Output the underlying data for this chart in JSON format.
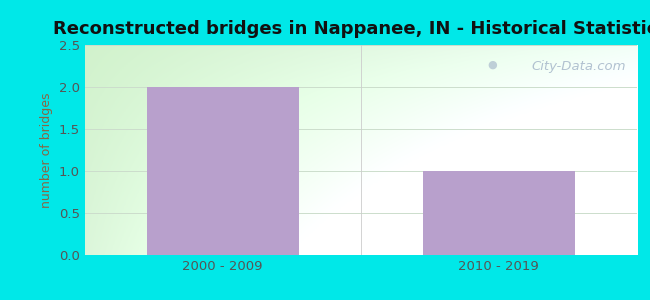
{
  "title": "Reconstructed bridges in Nappanee, IN - Historical Statistics",
  "categories": [
    "2000 - 2009",
    "2010 - 2019"
  ],
  "values": [
    2,
    1
  ],
  "bar_color": "#b8a0cc",
  "bar_width": 0.55,
  "ylim": [
    0,
    2.5
  ],
  "yticks": [
    0,
    0.5,
    1,
    1.5,
    2,
    2.5
  ],
  "ylabel": "number of bridges",
  "ylabel_color": "#886644",
  "title_fontsize": 13,
  "tick_label_color": "#555555",
  "outer_bg_color": "#00e8e8",
  "plot_bg_left": "#c8eec0",
  "plot_bg_right": "#f0fff8",
  "plot_bg_top": "#f8ffff",
  "grid_color": "#ccddcc",
  "watermark_text": "City-Data.com",
  "watermark_color": "#aabbcc",
  "title_color": "#111111"
}
